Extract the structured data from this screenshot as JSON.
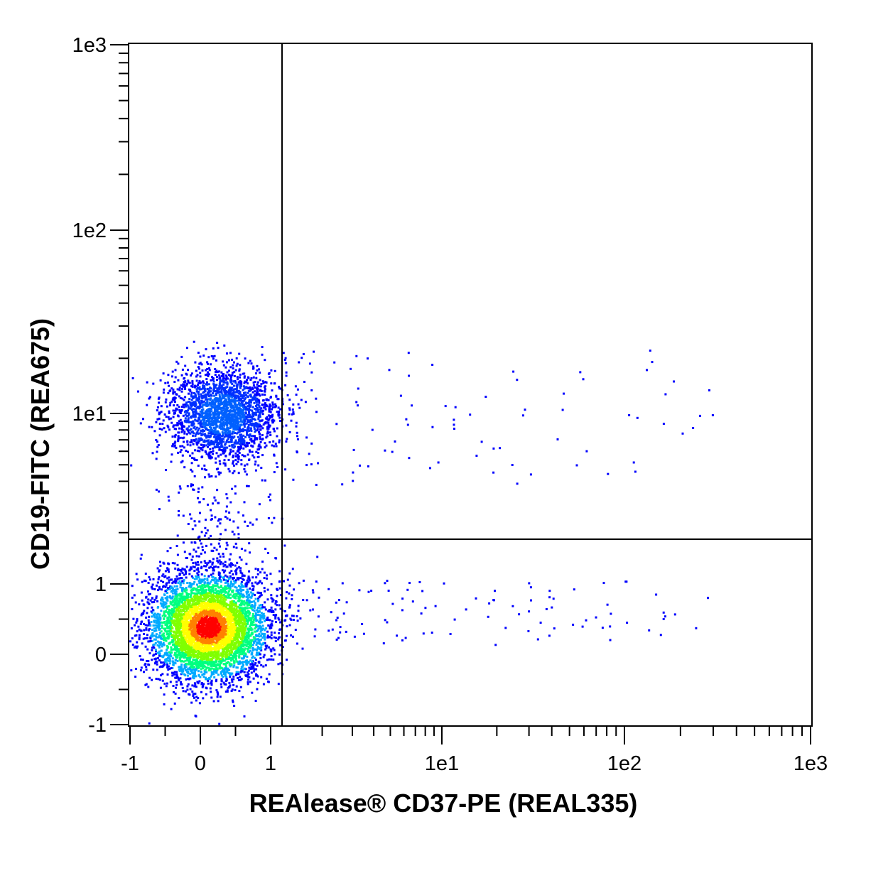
{
  "chart_data": {
    "type": "scatter",
    "title": "",
    "xlabel": "REAlease® CD37-PE (REAL335)",
    "ylabel": "CD19-FITC (REA675)",
    "x_scale": "biexponential",
    "y_scale": "biexponential",
    "x_tick_labels": [
      "-1",
      "0",
      "1",
      "1e1",
      "1e2",
      "1e3"
    ],
    "y_tick_labels": [
      "-1",
      "0",
      "1",
      "1e1",
      "1e2",
      "1e3"
    ],
    "xlim": [
      -1,
      1000
    ],
    "ylim": [
      -1,
      1000
    ],
    "gates": {
      "x": 1.2,
      "y": 2.0
    },
    "grid": false,
    "color_scale": [
      "#0000ff",
      "#00aaff",
      "#00ff80",
      "#ffff00",
      "#ff0000"
    ],
    "populations": [
      {
        "quadrant": "lower-left",
        "x_center": 0.1,
        "y_center": 0.4,
        "density": "high",
        "peak_color": "#ff0000"
      },
      {
        "quadrant": "upper-left",
        "x_center": 0.3,
        "y_center": 10,
        "density": "medium",
        "peak_color": "#0040ff"
      },
      {
        "quadrant": "right",
        "x_range": [
          1.2,
          300
        ],
        "density": "sparse",
        "peak_color": "#0000ff"
      }
    ]
  }
}
